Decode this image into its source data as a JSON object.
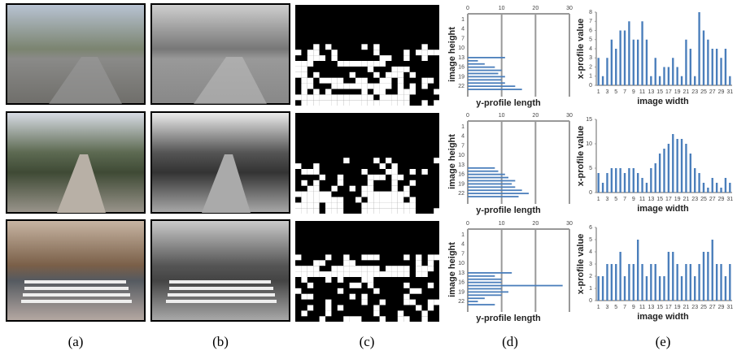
{
  "panel_labels": [
    "(a)",
    "(b)",
    "(c)",
    "(d)",
    "(e)"
  ],
  "chart_data": [
    {
      "type": "barh",
      "xlabel": "y-profile length",
      "ylabel": "image height",
      "categories": [
        "1",
        null,
        null,
        "4",
        null,
        null,
        "7",
        null,
        null,
        "10",
        null,
        null,
        "13",
        null,
        null,
        "16",
        null,
        null,
        "19",
        null,
        null,
        "22",
        null,
        null
      ],
      "values": [
        null,
        null,
        null,
        null,
        null,
        null,
        null,
        null,
        null,
        null,
        null,
        null,
        11,
        3,
        5,
        8,
        10,
        9,
        11,
        10,
        11,
        14,
        16,
        null
      ],
      "xlim": [
        0,
        30
      ],
      "xticks": [
        0,
        10,
        20,
        30
      ],
      "grid": true,
      "color": "#4a7ebb"
    },
    {
      "type": "bar",
      "xlabel": "image width",
      "ylabel": "x-profile value",
      "categories": [
        "1",
        null,
        "3",
        null,
        "5",
        null,
        "7",
        null,
        "9",
        null,
        "11",
        null,
        "13",
        null,
        "15",
        null,
        "17",
        null,
        "19",
        null,
        "21",
        null,
        "23",
        null,
        "25",
        null,
        "27",
        null,
        "29",
        null,
        "31"
      ],
      "values": [
        3,
        1,
        3,
        5,
        4,
        6,
        6,
        7,
        5,
        5,
        7,
        5,
        1,
        3,
        1,
        2,
        2,
        3,
        2,
        1,
        5,
        4,
        1,
        8,
        6,
        5,
        4,
        4,
        3,
        4,
        1
      ],
      "ylim": [
        0,
        8
      ],
      "yticks": [
        0,
        1,
        2,
        3,
        4,
        5,
        6,
        7,
        8
      ],
      "color": "#4a7ebb"
    },
    {
      "type": "barh",
      "xlabel": "y-profile length",
      "ylabel": "image height",
      "categories": [
        "1",
        null,
        null,
        "4",
        null,
        null,
        "7",
        null,
        null,
        "10",
        null,
        null,
        "13",
        null,
        null,
        "16",
        null,
        null,
        "19",
        null,
        null,
        "22",
        null,
        null
      ],
      "values": [
        null,
        null,
        null,
        null,
        null,
        null,
        null,
        null,
        null,
        null,
        null,
        null,
        null,
        8,
        9,
        11,
        12,
        14,
        13,
        14,
        16,
        18,
        15,
        null
      ],
      "xlim": [
        0,
        30
      ],
      "xticks": [
        0,
        10,
        20,
        30
      ],
      "grid": true,
      "color": "#4a7ebb"
    },
    {
      "type": "bar",
      "xlabel": "image width",
      "ylabel": "x-profile value",
      "categories": [
        "1",
        null,
        "3",
        null,
        "5",
        null,
        "7",
        null,
        "9",
        null,
        "11",
        null,
        "13",
        null,
        "15",
        null,
        "17",
        null,
        "19",
        null,
        "21",
        null,
        "23",
        null,
        "25",
        null,
        "27",
        null,
        "29",
        null,
        "31"
      ],
      "values": [
        4,
        2,
        4,
        5,
        5,
        5,
        4,
        5,
        5,
        4,
        3,
        2,
        5,
        6,
        8,
        9,
        10,
        12,
        11,
        11,
        10,
        8,
        5,
        4,
        2,
        1,
        3,
        2,
        1,
        3,
        2
      ],
      "ylim": [
        0,
        15
      ],
      "yticks": [
        0,
        5,
        10,
        15
      ],
      "color": "#4a7ebb"
    },
    {
      "type": "barh",
      "xlabel": "y-profile length",
      "ylabel": "image height",
      "categories": [
        "1",
        null,
        null,
        "4",
        null,
        null,
        "7",
        null,
        null,
        "10",
        null,
        null,
        "13",
        null,
        null,
        "16",
        null,
        null,
        "19",
        null,
        null,
        "22",
        null,
        null
      ],
      "values": [
        null,
        null,
        null,
        null,
        null,
        null,
        null,
        null,
        null,
        null,
        null,
        null,
        13,
        8,
        10,
        10,
        28,
        10,
        12,
        10,
        5,
        3,
        8,
        null
      ],
      "xlim": [
        0,
        30
      ],
      "xticks": [
        0,
        10,
        20,
        30
      ],
      "grid": true,
      "color": "#4a7ebb"
    },
    {
      "type": "bar",
      "xlabel": "image width",
      "ylabel": "x-profile value",
      "categories": [
        "1",
        null,
        "3",
        null,
        "5",
        null,
        "7",
        null,
        "9",
        null,
        "11",
        null,
        "13",
        null,
        "15",
        null,
        "17",
        null,
        "19",
        null,
        "21",
        null,
        "23",
        null,
        "25",
        null,
        "27",
        null,
        "29",
        null,
        "31"
      ],
      "values": [
        2,
        2,
        3,
        3,
        3,
        4,
        2,
        3,
        3,
        5,
        3,
        2,
        3,
        3,
        2,
        2,
        4,
        4,
        3,
        2,
        3,
        3,
        2,
        3,
        4,
        4,
        5,
        3,
        3,
        2,
        3
      ],
      "ylim": [
        0,
        6
      ],
      "yticks": [
        0,
        1,
        2,
        3,
        4,
        5,
        6
      ],
      "color": "#4a7ebb"
    }
  ]
}
